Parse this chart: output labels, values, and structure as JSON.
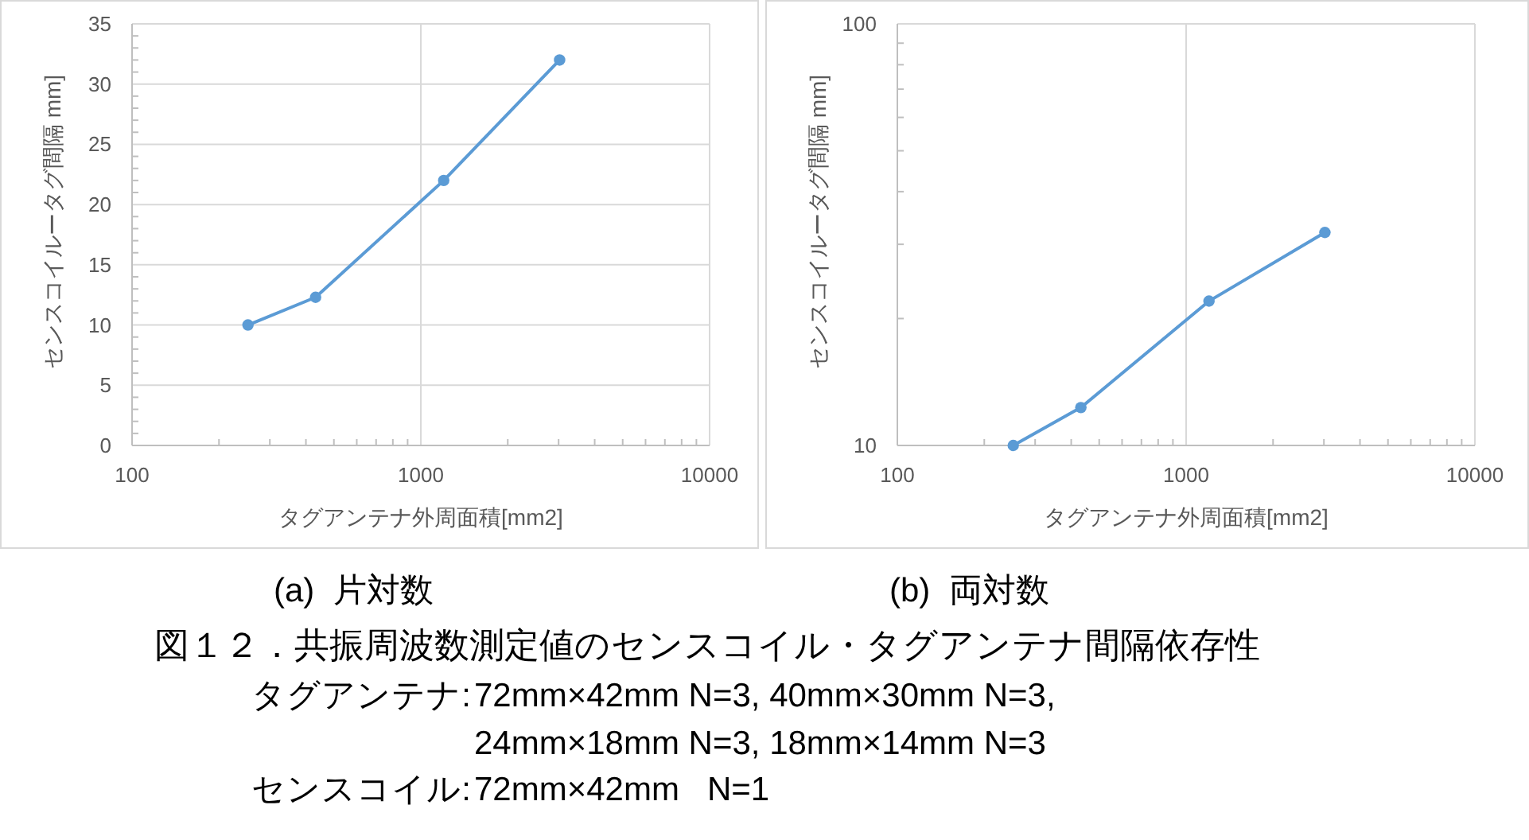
{
  "chart_data": [
    {
      "type": "line",
      "title": "(a)  片対数",
      "xlabel": "タグアンテナ外周面積[mm2]",
      "ylabel": "センスコイルータグ間隔 mm]",
      "log": "x",
      "grid": true,
      "marker": "circle",
      "line_style": "solid",
      "x": [
        252,
        432,
        1200,
        3024
      ],
      "series": [
        {
          "color": "#5b9bd5",
          "values": [
            10,
            12.3,
            22,
            32
          ]
        }
      ],
      "xlim": [
        100,
        10000
      ],
      "xticks": [
        100,
        {
          "value": 200,
          "label": null
        },
        {
          "value": 300,
          "label": null
        },
        {
          "value": 400,
          "label": null
        },
        {
          "value": 500,
          "label": null
        },
        {
          "value": 600,
          "label": null
        },
        {
          "value": 700,
          "label": null
        },
        {
          "value": 800,
          "label": null
        },
        {
          "value": 900,
          "label": null
        },
        1000,
        {
          "value": 2000,
          "label": null
        },
        {
          "value": 3000,
          "label": null
        },
        {
          "value": 4000,
          "label": null
        },
        {
          "value": 5000,
          "label": null
        },
        {
          "value": 6000,
          "label": null
        },
        {
          "value": 7000,
          "label": null
        },
        {
          "value": 8000,
          "label": null
        },
        {
          "value": 9000,
          "label": null
        },
        10000
      ],
      "ylim": [
        0,
        35
      ],
      "yticks": [
        0,
        {
          "value": 1,
          "label": null
        },
        {
          "value": 2,
          "label": null
        },
        {
          "value": 3,
          "label": null
        },
        {
          "value": 4,
          "label": null
        },
        5,
        {
          "value": 6,
          "label": null
        },
        {
          "value": 7,
          "label": null
        },
        {
          "value": 8,
          "label": null
        },
        {
          "value": 9,
          "label": null
        },
        10,
        {
          "value": 11,
          "label": null
        },
        {
          "value": 12,
          "label": null
        },
        {
          "value": 13,
          "label": null
        },
        {
          "value": 14,
          "label": null
        },
        15,
        {
          "value": 16,
          "label": null
        },
        {
          "value": 17,
          "label": null
        },
        {
          "value": 18,
          "label": null
        },
        {
          "value": 19,
          "label": null
        },
        20,
        {
          "value": 21,
          "label": null
        },
        {
          "value": 22,
          "label": null
        },
        {
          "value": 23,
          "label": null
        },
        {
          "value": 24,
          "label": null
        },
        25,
        {
          "value": 26,
          "label": null
        },
        {
          "value": 27,
          "label": null
        },
        {
          "value": 28,
          "label": null
        },
        {
          "value": 29,
          "label": null
        },
        30,
        {
          "value": 31,
          "label": null
        },
        {
          "value": 32,
          "label": null
        },
        {
          "value": 33,
          "label": null
        },
        {
          "value": 34,
          "label": null
        },
        35
      ]
    },
    {
      "type": "line",
      "title": "(b)  両対数",
      "xlabel": "タグアンテナ外周面積[mm2]",
      "ylabel": "センスコイルータグ間隔 mm]",
      "log": "xy",
      "grid": true,
      "marker": "circle",
      "line_style": "solid",
      "x": [
        252,
        432,
        1200,
        3024
      ],
      "series": [
        {
          "color": "#5b9bd5",
          "values": [
            10,
            12.3,
            22,
            32
          ]
        }
      ],
      "xlim": [
        100,
        10000
      ],
      "xticks": [
        100,
        {
          "value": 200,
          "label": null
        },
        {
          "value": 300,
          "label": null
        },
        {
          "value": 400,
          "label": null
        },
        {
          "value": 500,
          "label": null
        },
        {
          "value": 600,
          "label": null
        },
        {
          "value": 700,
          "label": null
        },
        {
          "value": 800,
          "label": null
        },
        {
          "value": 900,
          "label": null
        },
        1000,
        {
          "value": 2000,
          "label": null
        },
        {
          "value": 3000,
          "label": null
        },
        {
          "value": 4000,
          "label": null
        },
        {
          "value": 5000,
          "label": null
        },
        {
          "value": 6000,
          "label": null
        },
        {
          "value": 7000,
          "label": null
        },
        {
          "value": 8000,
          "label": null
        },
        {
          "value": 9000,
          "label": null
        },
        10000
      ],
      "ylim": [
        10,
        100
      ],
      "yticks": [
        10,
        {
          "value": 20,
          "label": null
        },
        {
          "value": 30,
          "label": null
        },
        {
          "value": 40,
          "label": null
        },
        {
          "value": 50,
          "label": null
        },
        {
          "value": 60,
          "label": null
        },
        {
          "value": 70,
          "label": null
        },
        {
          "value": 80,
          "label": null
        },
        {
          "value": 90,
          "label": null
        },
        100
      ]
    },
    {
      "type": "other",
      "title": "図１２．共振周波数測定値のセンスコイル・タグアンテナ間隔依存性",
      "annotations": [
        "タグアンテナ:",
        "72mm×42mm N=3, 40mm×30mm N=3,",
        "24mm×18mm N=3, 18mm×14mm N=3",
        "センスコイル:",
        "72mm×42mm   N=1"
      ]
    }
  ]
}
